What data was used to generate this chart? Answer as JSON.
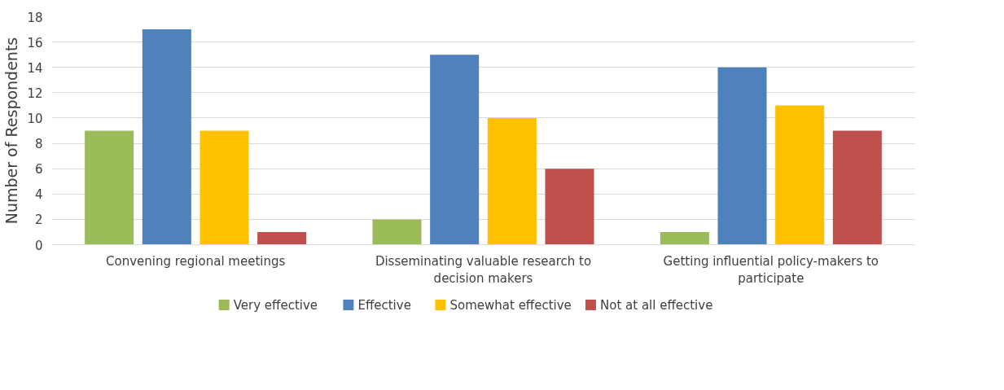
{
  "chart_data": {
    "type": "bar",
    "ylabel": "Number of Respondents",
    "categories": [
      "Convening regional meetings",
      "Disseminating valuable research to decision makers",
      "Getting influential policy-makers to participate"
    ],
    "series": [
      {
        "name": "Very effective",
        "color": "#9bbb59",
        "values": [
          9,
          2,
          1
        ]
      },
      {
        "name": "Effective",
        "color": "#4f81bd",
        "values": [
          17,
          15,
          14
        ]
      },
      {
        "name": "Somewhat effective",
        "color": "#ffc000",
        "values": [
          9,
          10,
          11
        ]
      },
      {
        "name": "Not at all effective",
        "color": "#c0504d",
        "values": [
          1,
          6,
          9
        ]
      }
    ],
    "ylim": [
      0,
      18
    ],
    "yticks": [
      0,
      2,
      4,
      6,
      8,
      10,
      12,
      14,
      16,
      18
    ],
    "grid": "y",
    "legend": "bottom"
  }
}
